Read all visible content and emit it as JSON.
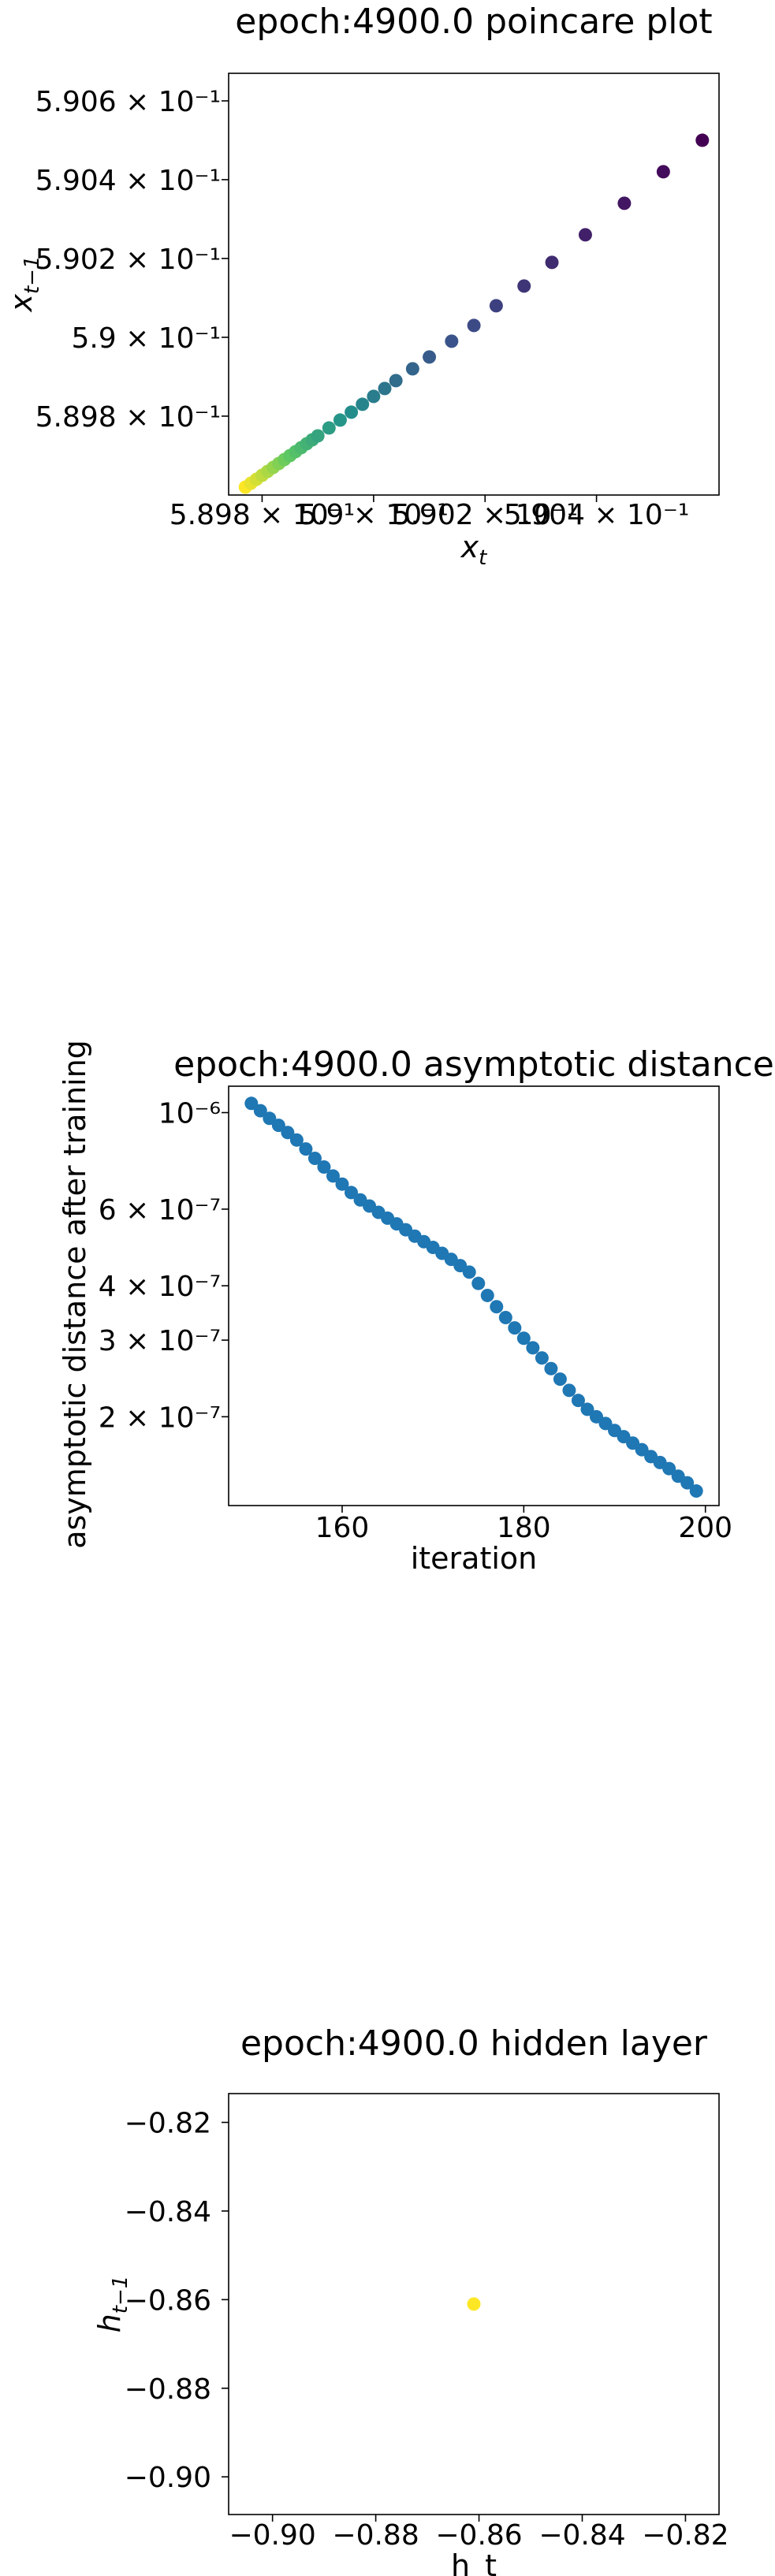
{
  "chart_data": [
    {
      "type": "scatter",
      "title": "epoch:4900.0 poincare plot",
      "xlabel": "x_t",
      "ylabel": "x_{t-1}",
      "scale": "log",
      "xlim": [
        0.58974,
        0.59062
      ],
      "ylim": [
        0.5896,
        0.59067
      ],
      "xticks": [
        {
          "value": 0.5898,
          "label": "5.898 × 10⁻¹"
        },
        {
          "value": 0.59,
          "label": "5.9 × 10⁻¹"
        },
        {
          "value": 0.5902,
          "label": "5.902 × 10⁻¹"
        },
        {
          "value": 0.5904,
          "label": "5.904 × 10⁻¹"
        }
      ],
      "yticks": [
        {
          "value": 0.5898,
          "label": "5.898 × 10⁻¹"
        },
        {
          "value": 0.59,
          "label": "5.9 × 10⁻¹"
        },
        {
          "value": 0.5902,
          "label": "5.902 × 10⁻¹"
        },
        {
          "value": 0.5904,
          "label": "5.904 × 10⁻¹"
        },
        {
          "value": 0.5906,
          "label": "5.906 × 10⁻¹"
        }
      ],
      "colormap": [
        "#fde725",
        "#5ec962",
        "#21918c",
        "#3b528b",
        "#440154"
      ],
      "x": [
        0.58977,
        0.58978,
        0.58979,
        0.5898,
        0.58981,
        0.58982,
        0.58983,
        0.58984,
        0.58985,
        0.58986,
        0.58987,
        0.58988,
        0.58989,
        0.5899,
        0.58992,
        0.58994,
        0.58996,
        0.58998,
        0.59,
        0.59002,
        0.59004,
        0.59007,
        0.5901,
        0.59014,
        0.59018,
        0.59022,
        0.59027,
        0.59032,
        0.59038,
        0.59045,
        0.59052,
        0.59059
      ],
      "y": [
        0.58962,
        0.58963,
        0.58964,
        0.58965,
        0.58966,
        0.58967,
        0.58968,
        0.58969,
        0.5897,
        0.58971,
        0.58972,
        0.58973,
        0.58974,
        0.58975,
        0.58977,
        0.58979,
        0.58981,
        0.58983,
        0.58985,
        0.58987,
        0.58989,
        0.58992,
        0.58995,
        0.58999,
        0.59003,
        0.59008,
        0.59013,
        0.59019,
        0.59026,
        0.59034,
        0.59042,
        0.5905
      ]
    },
    {
      "type": "scatter",
      "title": "epoch:4900.0 asymptotic distance",
      "xlabel": "iteration",
      "ylabel": "asymptotic distance after training",
      "scale": "log-y",
      "xlim": [
        147.5,
        201.5
      ],
      "ylim": [
        1.25e-07,
        1.15e-06
      ],
      "color": "#1f77b4",
      "xticks": [
        {
          "value": 160,
          "label": "160"
        },
        {
          "value": 180,
          "label": "180"
        },
        {
          "value": 200,
          "label": "200"
        }
      ],
      "yticks": [
        {
          "value": 1e-06,
          "label": "10⁻⁶"
        },
        {
          "value": 6e-07,
          "label": "6 × 10⁻⁷"
        },
        {
          "value": 4e-07,
          "label": "4 × 10⁻⁷"
        },
        {
          "value": 3e-07,
          "label": "3 × 10⁻⁷"
        },
        {
          "value": 2e-07,
          "label": "2 × 10⁻⁷"
        }
      ],
      "x": [
        150,
        151,
        152,
        153,
        154,
        155,
        156,
        157,
        158,
        159,
        160,
        161,
        162,
        163,
        164,
        165,
        166,
        167,
        168,
        169,
        170,
        171,
        172,
        173,
        174,
        175,
        176,
        177,
        178,
        179,
        180,
        181,
        182,
        183,
        184,
        185,
        186,
        187,
        188,
        189,
        190,
        191,
        192,
        193,
        194,
        195,
        196,
        197,
        198,
        199
      ],
      "y": [
        1.05e-06,
        1.01e-06,
        9.7e-07,
        9.35e-07,
        9e-07,
        8.65e-07,
        8.25e-07,
        7.85e-07,
        7.5e-07,
        7.15e-07,
        6.85e-07,
        6.55e-07,
        6.3e-07,
        6.1e-07,
        5.9e-07,
        5.72e-07,
        5.55e-07,
        5.38e-07,
        5.2e-07,
        5.05e-07,
        4.9e-07,
        4.75e-07,
        4.6e-07,
        4.45e-07,
        4.3e-07,
        4.05e-07,
        3.8e-07,
        3.58e-07,
        3.38e-07,
        3.2e-07,
        3.03e-07,
        2.88e-07,
        2.73e-07,
        2.58e-07,
        2.44e-07,
        2.3e-07,
        2.18e-07,
        2.08e-07,
        2e-07,
        1.93e-07,
        1.86e-07,
        1.8e-07,
        1.74e-07,
        1.68e-07,
        1.62e-07,
        1.57e-07,
        1.52e-07,
        1.46e-07,
        1.41e-07,
        1.35e-07
      ]
    },
    {
      "type": "scatter",
      "title": "epoch:4900.0 hidden layer",
      "xlabel": "h_t",
      "ylabel": "h_{t-1}",
      "scale": "linear",
      "xlim": [
        -0.9085,
        -0.8135
      ],
      "ylim": [
        -0.9085,
        -0.8135
      ],
      "color": "#fde725",
      "xticks": [
        {
          "value": -0.9,
          "label": "−0.90"
        },
        {
          "value": -0.88,
          "label": "−0.88"
        },
        {
          "value": -0.86,
          "label": "−0.86"
        },
        {
          "value": -0.84,
          "label": "−0.84"
        },
        {
          "value": -0.82,
          "label": "−0.82"
        }
      ],
      "yticks": [
        {
          "value": -0.82,
          "label": "−0.82"
        },
        {
          "value": -0.84,
          "label": "−0.84"
        },
        {
          "value": -0.86,
          "label": "−0.86"
        },
        {
          "value": -0.88,
          "label": "−0.88"
        },
        {
          "value": -0.9,
          "label": "−0.90"
        }
      ],
      "x": [
        -0.861
      ],
      "y": [
        -0.861
      ]
    }
  ]
}
